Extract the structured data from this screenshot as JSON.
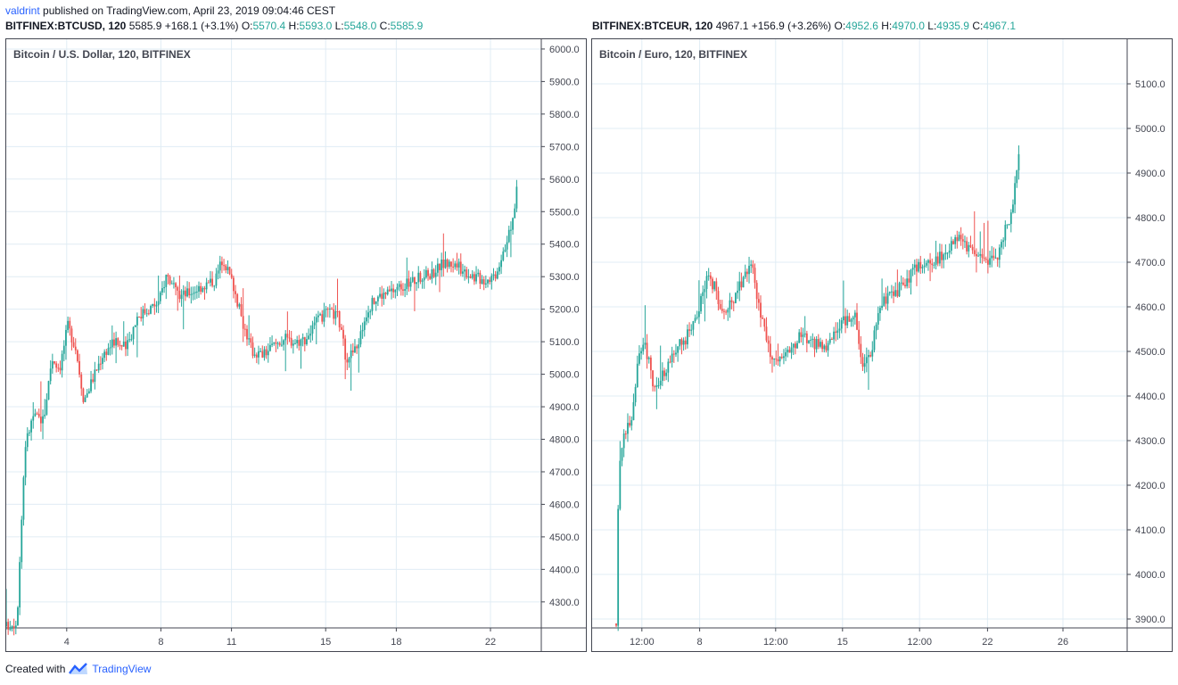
{
  "header": {
    "user": "valdrint",
    "published_text": "published on TradingView.com, April 23, 2019 09:04:46 CEST"
  },
  "colors": {
    "up": "#26a69a",
    "down": "#ef5350",
    "grid": "#e0ecf4",
    "brand": "#2962ff"
  },
  "footer": {
    "created_with": "Created with",
    "brand": "TradingView",
    "logo_icon": "tradingview-logo-icon"
  },
  "charts": [
    {
      "symbol": "BITFINEX:BTCUSD, 120",
      "last": "5585.9",
      "change": "+168.1 (+3.1%)",
      "o_label": "O:",
      "o": "5570.4",
      "h_label": "H:",
      "h": "5593.0",
      "l_label": "L:",
      "l": "5548.0",
      "c_label": "C:",
      "c": "5585.9",
      "pane_label": "Bitcoin / U.S. Dollar, 120, BITFINEX"
    },
    {
      "symbol": "BITFINEX:BTCEUR, 120",
      "last": "4967.1",
      "change": "+156.9 (+3.26%)",
      "o_label": "O:",
      "o": "4952.6",
      "h_label": "H:",
      "h": "4970.0",
      "l_label": "L:",
      "l": "4935.9",
      "c_label": "C:",
      "c": "4967.1",
      "pane_label": "Bitcoin / Euro, 120, BITFINEX"
    }
  ],
  "chart_data": [
    {
      "type": "candlestick",
      "title": "Bitcoin / U.S. Dollar, 120, BITFINEX",
      "ylim": [
        4220,
        6030
      ],
      "y_ticks": [
        "4300.0",
        "4400.0",
        "4500.0",
        "4600.0",
        "4700.0",
        "4800.0",
        "4900.0",
        "5000.0",
        "5100.0",
        "5200.0",
        "5300.0",
        "5400.0",
        "5500.0",
        "5600.0",
        "5700.0",
        "5800.0",
        "5900.0",
        "6000.0"
      ],
      "x_ticks": [
        "4",
        "8",
        "11",
        "15",
        "18",
        "22"
      ],
      "x_tick_pos": [
        0.113,
        0.289,
        0.421,
        0.597,
        0.729,
        0.905
      ],
      "grid": true,
      "close_path": [
        [
          0.0,
          4225
        ],
        [
          0.02,
          4240
        ],
        [
          0.035,
          4780
        ],
        [
          0.05,
          4870
        ],
        [
          0.07,
          4860
        ],
        [
          0.085,
          5050
        ],
        [
          0.1,
          5020
        ],
        [
          0.115,
          5150
        ],
        [
          0.13,
          5080
        ],
        [
          0.145,
          4920
        ],
        [
          0.16,
          4980
        ],
        [
          0.18,
          5060
        ],
        [
          0.2,
          5100
        ],
        [
          0.225,
          5080
        ],
        [
          0.245,
          5180
        ],
        [
          0.265,
          5200
        ],
        [
          0.285,
          5220
        ],
        [
          0.3,
          5310
        ],
        [
          0.32,
          5240
        ],
        [
          0.34,
          5250
        ],
        [
          0.365,
          5270
        ],
        [
          0.39,
          5290
        ],
        [
          0.405,
          5360
        ],
        [
          0.425,
          5270
        ],
        [
          0.44,
          5170
        ],
        [
          0.46,
          5070
        ],
        [
          0.48,
          5060
        ],
        [
          0.5,
          5090
        ],
        [
          0.52,
          5110
        ],
        [
          0.54,
          5100
        ],
        [
          0.56,
          5110
        ],
        [
          0.58,
          5160
        ],
        [
          0.6,
          5190
        ],
        [
          0.62,
          5180
        ],
        [
          0.635,
          5050
        ],
        [
          0.655,
          5080
        ],
        [
          0.675,
          5200
        ],
        [
          0.695,
          5240
        ],
        [
          0.715,
          5250
        ],
        [
          0.735,
          5270
        ],
        [
          0.755,
          5280
        ],
        [
          0.775,
          5300
        ],
        [
          0.795,
          5310
        ],
        [
          0.815,
          5340
        ],
        [
          0.835,
          5340
        ],
        [
          0.855,
          5320
        ],
        [
          0.875,
          5300
        ],
        [
          0.895,
          5290
        ],
        [
          0.915,
          5310
        ],
        [
          0.93,
          5390
        ],
        [
          0.945,
          5450
        ],
        [
          0.955,
          5585
        ]
      ],
      "volatility": 22
    },
    {
      "type": "candlestick",
      "title": "Bitcoin / Euro, 120, BITFINEX",
      "ylim": [
        3880,
        5200
      ],
      "y_ticks": [
        "3900.0",
        "4000.0",
        "4100.0",
        "4200.0",
        "4300.0",
        "4400.0",
        "4500.0",
        "4600.0",
        "4700.0",
        "4800.0",
        "4900.0",
        "5000.0",
        "5100.0"
      ],
      "x_ticks": [
        "12:00",
        "8",
        "12:00",
        "15",
        "12:00",
        "22",
        "26"
      ],
      "x_tick_pos": [
        0.093,
        0.201,
        0.343,
        0.468,
        0.612,
        0.739,
        0.88
      ],
      "grid": true,
      "close_path": [
        [
          0.045,
          3890
        ],
        [
          0.05,
          4250
        ],
        [
          0.06,
          4320
        ],
        [
          0.075,
          4360
        ],
        [
          0.085,
          4480
        ],
        [
          0.1,
          4510
        ],
        [
          0.115,
          4420
        ],
        [
          0.13,
          4440
        ],
        [
          0.15,
          4500
        ],
        [
          0.17,
          4520
        ],
        [
          0.19,
          4560
        ],
        [
          0.205,
          4620
        ],
        [
          0.215,
          4680
        ],
        [
          0.23,
          4640
        ],
        [
          0.245,
          4580
        ],
        [
          0.265,
          4620
        ],
        [
          0.285,
          4670
        ],
        [
          0.3,
          4690
        ],
        [
          0.31,
          4610
        ],
        [
          0.33,
          4500
        ],
        [
          0.345,
          4470
        ],
        [
          0.365,
          4490
        ],
        [
          0.385,
          4530
        ],
        [
          0.405,
          4530
        ],
        [
          0.425,
          4510
        ],
        [
          0.445,
          4520
        ],
        [
          0.465,
          4560
        ],
        [
          0.48,
          4580
        ],
        [
          0.49,
          4590
        ],
        [
          0.505,
          4470
        ],
        [
          0.52,
          4490
        ],
        [
          0.535,
          4590
        ],
        [
          0.555,
          4630
        ],
        [
          0.575,
          4640
        ],
        [
          0.595,
          4670
        ],
        [
          0.615,
          4700
        ],
        [
          0.635,
          4690
        ],
        [
          0.655,
          4720
        ],
        [
          0.675,
          4740
        ],
        [
          0.69,
          4750
        ],
        [
          0.71,
          4720
        ],
        [
          0.73,
          4710
        ],
        [
          0.745,
          4700
        ],
        [
          0.76,
          4720
        ],
        [
          0.775,
          4790
        ],
        [
          0.785,
          4810
        ],
        [
          0.8,
          4965
        ]
      ],
      "volatility": 18
    }
  ]
}
